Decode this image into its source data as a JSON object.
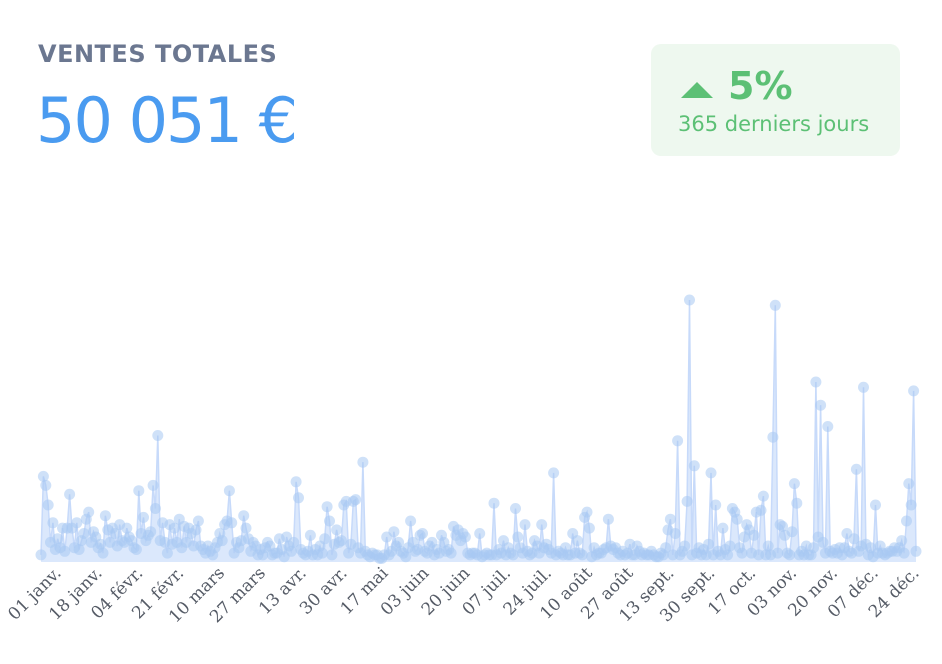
{
  "card": {
    "title": "VENTES TOTALES",
    "value": "50 051 €"
  },
  "trend": {
    "direction": "up",
    "percent": "5%",
    "period": "365 derniers jours",
    "color": "#5cc075",
    "background": "#eef8ef",
    "icon": "triangle-up-icon"
  },
  "colors": {
    "title": "#6b7790",
    "value": "#4a9bf0",
    "series_fill": "#dbe8fc",
    "series_stroke": "#c7dafa",
    "point": "#a8c8f2"
  },
  "chart_data": {
    "type": "area",
    "title": "",
    "xlabel": "",
    "ylabel": "",
    "grid": false,
    "legend": "none",
    "x_ticks": [
      "01 janv.",
      "18 janv.",
      "04 févr.",
      "21 févr.",
      "10 mars",
      "27 mars",
      "13 avr.",
      "30 avr.",
      "17 mai",
      "03 juin",
      "20 juin",
      "07 juil.",
      "24 juil.",
      "10 août",
      "27 août",
      "13 sept.",
      "30 sept.",
      "17 oct.",
      "03 nov.",
      "20 nov.",
      "07 déc.",
      "24 déc."
    ],
    "series": [
      {
        "markers": true,
        "values": [
          20,
          240,
          215,
          160,
          55,
          110,
          35,
          65,
          40,
          95,
          30,
          95,
          190,
          95,
          40,
          110,
          35,
          60,
          80,
          120,
          140,
          55,
          85,
          70,
          40,
          50,
          25,
          130,
          90,
          55,
          95,
          80,
          45,
          105,
          60,
          55,
          95,
          70,
          60,
          40,
          35,
          200,
          80,
          125,
          60,
          75,
          85,
          215,
          150,
          355,
          60,
          110,
          55,
          25,
          105,
          50,
          95,
          55,
          120,
          40,
          100,
          55,
          95,
          80,
          45,
          90,
          115,
          45,
          35,
          25,
          45,
          30,
          20,
          40,
          55,
          80,
          60,
          105,
          115,
          200,
          110,
          25,
          55,
          40,
          60,
          130,
          95,
          65,
          30,
          55,
          45,
          20,
          35,
          20,
          40,
          55,
          45,
          20,
          25,
          25,
          65,
          35,
          15,
          70,
          45,
          30,
          55,
          225,
          180,
          35,
          25,
          20,
          30,
          75,
          20,
          35,
          20,
          45,
          25,
          65,
          155,
          115,
          20,
          50,
          90,
          55,
          60,
          160,
          170,
          25,
          50,
          170,
          175,
          40,
          25,
          280,
          30,
          20,
          15,
          25,
          20,
          20,
          10,
          10,
          20,
          70,
          20,
          30,
          85,
          45,
          55,
          30,
          25,
          15,
          40,
          115,
          55,
          30,
          35,
          75,
          80,
          30,
          25,
          45,
          55,
          20,
          35,
          25,
          75,
          55,
          30,
          35,
          25,
          100,
          75,
          90,
          60,
          80,
          70,
          25,
          20,
          25,
          25,
          20,
          80,
          15,
          20,
          25,
          20,
          20,
          165,
          20,
          35,
          25,
          60,
          20,
          40,
          25,
          20,
          150,
          70,
          40,
          25,
          105,
          30,
          20,
          25,
          60,
          45,
          25,
          105,
          40,
          50,
          35,
          25,
          250,
          20,
          30,
          25,
          20,
          40,
          20,
          20,
          80,
          25,
          60,
          25,
          20,
          125,
          140,
          95,
          15,
          40,
          20,
          25,
          25,
          35,
          40,
          120,
          45,
          35,
          40,
          25,
          20,
          30,
          20,
          25,
          50,
          20,
          20,
          45,
          30,
          20,
          25,
          20,
          20,
          30,
          20,
          15,
          15,
          25,
          20,
          40,
          90,
          120,
          20,
          80,
          340,
          20,
          30,
          45,
          170,
          735,
          20,
          270,
          25,
          40,
          20,
          35,
          20,
          50,
          250,
          20,
          160,
          30,
          20,
          95,
          35,
          20,
          45,
          150,
          140,
          120,
          40,
          25,
          70,
          105,
          90,
          25,
          75,
          140,
          20,
          145,
          185,
          20,
          45,
          20,
          350,
          720,
          25,
          105,
          100,
          75,
          25,
          20,
          85,
          220,
          165,
          20,
          30,
          20,
          45,
          20,
          20,
          40,
          505,
          70,
          440,
          55,
          25,
          380,
          30,
          25,
          35,
          25,
          40,
          20,
          40,
          80,
          30,
          25,
          65,
          260,
          30,
          45,
          490,
          50,
          20,
          40,
          15,
          160,
          25,
          45,
          25,
          20,
          25,
          30,
          30,
          40,
          30,
          40,
          60,
          25,
          115,
          220,
          160,
          480,
          30
        ]
      }
    ]
  }
}
